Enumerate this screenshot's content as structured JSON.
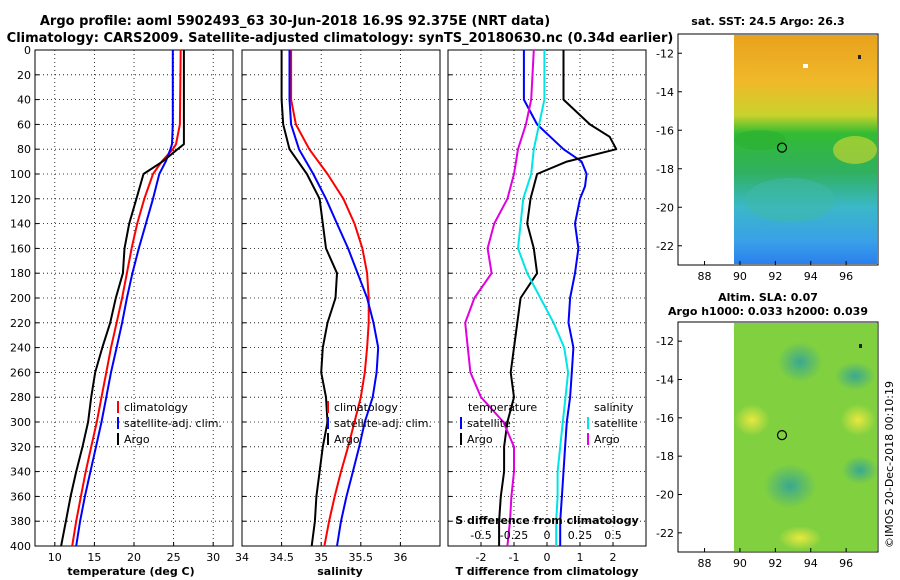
{
  "header": {
    "line1": "Argo profile: aoml 5902493_63 30-Jun-2018 16.9S 92.375E (NRT data)",
    "line2": "Climatology: CARS2009. Satellite-adjusted climatology: synTS_20180630.nc (0.34d earlier)"
  },
  "watermark": "©IMOS 20-Dec-2018 00:10:19",
  "colors": {
    "climatology": "#ff0000",
    "satellite": "#0000ff",
    "argo": "#000000",
    "salinity_satellite": "#00e5e5",
    "salinity_argo": "#e000e0"
  },
  "chart_data": [
    {
      "type": "line",
      "title": "",
      "xlabel": "temperature (deg C)",
      "ylabel": "",
      "xlim": [
        7.5,
        32.5
      ],
      "ylim": [
        400,
        0
      ],
      "xticks": [
        "10",
        "15",
        "20",
        "25",
        "30"
      ],
      "yticks": [
        "0",
        "20",
        "40",
        "60",
        "80",
        "100",
        "120",
        "140",
        "160",
        "180",
        "200",
        "220",
        "240",
        "260",
        "280",
        "300",
        "320",
        "340",
        "360",
        "380",
        "400"
      ],
      "grid": true,
      "legend_position": "lower-right",
      "depth": [
        0,
        60,
        76,
        80,
        90,
        100,
        120,
        140,
        160,
        180,
        200,
        220,
        240,
        260,
        280,
        300,
        320,
        340,
        360,
        380,
        400
      ],
      "series": [
        {
          "name": "climatology",
          "color": "#ff0000",
          "values": [
            25.9,
            25.8,
            25.3,
            24.9,
            23.5,
            22.4,
            21.3,
            20.4,
            19.7,
            19.1,
            18.5,
            17.8,
            17.1,
            16.5,
            15.9,
            15.3,
            14.6,
            13.9,
            13.3,
            12.7,
            12.2
          ]
        },
        {
          "name": "satellite-adj. clim.",
          "color": "#0000ff",
          "values": [
            24.9,
            24.9,
            24.8,
            24.6,
            24.0,
            23.2,
            22.4,
            21.5,
            20.6,
            19.8,
            19.1,
            18.5,
            17.8,
            17.1,
            16.5,
            15.9,
            15.2,
            14.5,
            13.8,
            13.2,
            12.7
          ]
        },
        {
          "name": "Argo",
          "color": "#000000",
          "values": [
            26.3,
            26.3,
            26.3,
            25.5,
            23.6,
            21.2,
            20.3,
            19.4,
            18.8,
            18.6,
            17.7,
            17.0,
            16.0,
            15.1,
            14.6,
            14.2,
            13.5,
            12.7,
            12.0,
            11.4,
            10.8
          ]
        }
      ]
    },
    {
      "type": "line",
      "title": "",
      "xlabel": "salinity",
      "ylabel": "",
      "xlim": [
        34,
        36.5
      ],
      "ylim": [
        400,
        0
      ],
      "xticks": [
        "34",
        "34.5",
        "35",
        "35.5",
        "36"
      ],
      "grid": true,
      "legend_position": "lower-right",
      "depth": [
        0,
        40,
        60,
        80,
        100,
        120,
        140,
        160,
        180,
        200,
        220,
        240,
        260,
        280,
        300,
        320,
        340,
        360,
        380,
        400
      ],
      "series": [
        {
          "name": "climatology",
          "color": "#ff0000",
          "values": [
            34.62,
            34.62,
            34.68,
            34.85,
            35.08,
            35.28,
            35.42,
            35.52,
            35.58,
            35.6,
            35.6,
            35.58,
            35.55,
            35.5,
            35.42,
            35.34,
            35.25,
            35.17,
            35.1,
            35.04
          ]
        },
        {
          "name": "satellite-adj. clim.",
          "color": "#0000ff",
          "values": [
            34.6,
            34.6,
            34.62,
            34.72,
            34.9,
            35.06,
            35.2,
            35.34,
            35.46,
            35.58,
            35.66,
            35.72,
            35.7,
            35.65,
            35.55,
            35.48,
            35.4,
            35.32,
            35.25,
            35.2
          ]
        },
        {
          "name": "Argo",
          "color": "#000000",
          "values": [
            34.5,
            34.5,
            34.52,
            34.6,
            34.82,
            34.98,
            35.02,
            35.06,
            35.2,
            35.18,
            35.08,
            35.02,
            35.0,
            35.06,
            35.08,
            35.02,
            34.98,
            34.94,
            34.92,
            34.88
          ]
        }
      ]
    },
    {
      "type": "line",
      "title": "",
      "xlabel": "T difference from climatology",
      "ylabel": "",
      "xlim": [
        -3,
        3
      ],
      "ylim": [
        400,
        0
      ],
      "xticks": [
        "-2",
        "-1",
        "0",
        "1",
        "2"
      ],
      "grid": true,
      "legend_position": "lower",
      "depth": [
        0,
        40,
        60,
        70,
        80,
        90,
        100,
        110,
        120,
        140,
        160,
        180,
        200,
        220,
        240,
        260,
        280,
        300,
        320,
        340,
        360,
        380,
        400
      ],
      "series": [
        {
          "name": "satellite",
          "color": "#0000ff",
          "values": [
            -0.7,
            -0.7,
            -0.3,
            0.1,
            0.5,
            1.05,
            1.2,
            1.15,
            1.0,
            0.85,
            0.95,
            0.85,
            0.7,
            0.65,
            0.8,
            0.75,
            0.7,
            0.6,
            0.55,
            0.5,
            0.45,
            0.4,
            0.4
          ]
        },
        {
          "name": "Argo",
          "color": "#000000",
          "values": [
            0.5,
            0.5,
            1.3,
            1.9,
            2.1,
            0.6,
            -0.3,
            -0.4,
            -0.5,
            -0.6,
            -0.4,
            -0.3,
            -0.8,
            -0.9,
            -1.0,
            -1.1,
            -1.0,
            -1.2,
            -1.3,
            -1.3,
            -1.4,
            -1.45,
            -1.45
          ]
        }
      ]
    },
    {
      "type": "line",
      "title": "S difference from climatology",
      "xlabel": "",
      "ylabel": "",
      "xlim": [
        -0.75,
        0.75
      ],
      "ylim": [
        400,
        0
      ],
      "xticks": [
        "-0.5",
        "-0.25",
        "0",
        "0.25",
        "0.5"
      ],
      "grid": false,
      "legend_position": "lower",
      "depth": [
        0,
        40,
        60,
        80,
        100,
        120,
        140,
        160,
        180,
        200,
        220,
        240,
        260,
        280,
        300,
        320,
        340,
        360,
        380,
        400
      ],
      "series": [
        {
          "name": "satellite",
          "color": "#00e5e5",
          "values": [
            -0.02,
            -0.02,
            -0.06,
            -0.1,
            -0.12,
            -0.18,
            -0.2,
            -0.22,
            -0.15,
            -0.05,
            0.05,
            0.13,
            0.16,
            0.14,
            0.12,
            0.1,
            0.08,
            0.08,
            0.07,
            0.07
          ]
        },
        {
          "name": "Argo",
          "color": "#e000e0",
          "values": [
            -0.1,
            -0.12,
            -0.16,
            -0.22,
            -0.25,
            -0.3,
            -0.4,
            -0.45,
            -0.42,
            -0.55,
            -0.62,
            -0.6,
            -0.58,
            -0.5,
            -0.33,
            -0.25,
            -0.25,
            -0.27,
            -0.28,
            -0.3
          ]
        }
      ]
    }
  ],
  "maps": {
    "sst": {
      "title": "sat. SST: 24.5 Argo: 26.3",
      "xticks": [
        "88",
        "90",
        "92",
        "94",
        "96"
      ],
      "yticks": [
        "-12",
        "-14",
        "-16",
        "-18",
        "-20",
        "-22"
      ],
      "lon_range": [
        86.5,
        97.8
      ],
      "lat_range": [
        -23,
        -11
      ],
      "marker": {
        "lon": 92.375,
        "lat": -16.9
      }
    },
    "sla": {
      "title": "Altim. SLA: 0.07",
      "subtitle": "Argo h1000: 0.033 h2000: 0.039",
      "xticks": [
        "88",
        "90",
        "92",
        "94",
        "96"
      ],
      "yticks": [
        "-12",
        "-14",
        "-16",
        "-18",
        "-20",
        "-22"
      ],
      "lon_range": [
        86.5,
        97.8
      ],
      "lat_range": [
        -23,
        -11
      ],
      "marker": {
        "lon": 92.375,
        "lat": -16.9
      }
    }
  }
}
